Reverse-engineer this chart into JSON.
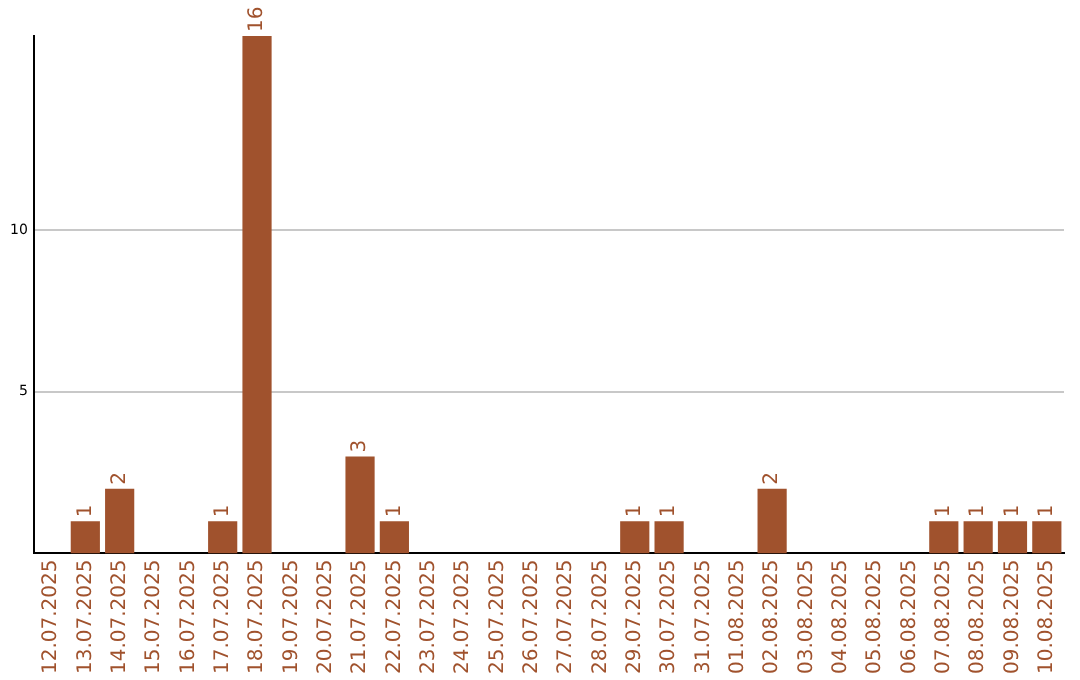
{
  "chart_data": {
    "type": "bar",
    "categories": [
      "12.07.2025",
      "13.07.2025",
      "14.07.2025",
      "15.07.2025",
      "16.07.2025",
      "17.07.2025",
      "18.07.2025",
      "19.07.2025",
      "20.07.2025",
      "21.07.2025",
      "22.07.2025",
      "23.07.2025",
      "24.07.2025",
      "25.07.2025",
      "26.07.2025",
      "27.07.2025",
      "28.07.2025",
      "29.07.2025",
      "30.07.2025",
      "31.07.2025",
      "01.08.2025",
      "02.08.2025",
      "03.08.2025",
      "04.08.2025",
      "05.08.2025",
      "06.08.2025",
      "07.08.2025",
      "08.08.2025",
      "09.08.2025",
      "10.08.2025"
    ],
    "values": [
      0,
      1,
      2,
      0,
      0,
      1,
      16,
      0,
      0,
      3,
      1,
      0,
      0,
      0,
      0,
      0,
      0,
      1,
      1,
      0,
      0,
      2,
      0,
      0,
      0,
      0,
      1,
      1,
      1,
      1
    ],
    "value_labels": [
      null,
      "1",
      "2",
      null,
      null,
      "1",
      "16",
      null,
      null,
      "3",
      "1",
      null,
      null,
      null,
      null,
      null,
      null,
      "1",
      "1",
      null,
      null,
      "2",
      null,
      null,
      null,
      null,
      "1",
      "1",
      "1",
      "1"
    ],
    "color": "#a0522d",
    "ylim": [
      0,
      16
    ],
    "yticks": [
      5,
      10
    ],
    "grid": "y",
    "legend": false
  }
}
